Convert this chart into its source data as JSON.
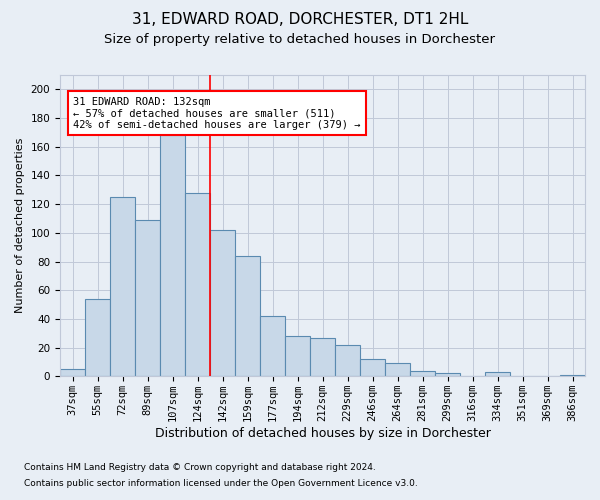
{
  "title1": "31, EDWARD ROAD, DORCHESTER, DT1 2HL",
  "title2": "Size of property relative to detached houses in Dorchester",
  "xlabel": "Distribution of detached houses by size in Dorchester",
  "ylabel": "Number of detached properties",
  "categories": [
    "37sqm",
    "55sqm",
    "72sqm",
    "89sqm",
    "107sqm",
    "124sqm",
    "142sqm",
    "159sqm",
    "177sqm",
    "194sqm",
    "212sqm",
    "229sqm",
    "246sqm",
    "264sqm",
    "281sqm",
    "299sqm",
    "316sqm",
    "334sqm",
    "351sqm",
    "369sqm",
    "386sqm"
  ],
  "values": [
    5,
    54,
    125,
    109,
    168,
    128,
    102,
    84,
    42,
    28,
    27,
    22,
    12,
    9,
    4,
    2,
    0,
    3,
    0,
    0,
    1
  ],
  "bar_color": "#c8d8e8",
  "bar_edge_color": "#5a8ab0",
  "bar_linewidth": 0.8,
  "vline_x_index": 5,
  "vline_color": "red",
  "annotation_text": "31 EDWARD ROAD: 132sqm\n← 57% of detached houses are smaller (511)\n42% of semi-detached houses are larger (379) →",
  "annotation_box_color": "white",
  "annotation_box_edge_color": "red",
  "annotation_fontsize": 7.5,
  "ylim": [
    0,
    210
  ],
  "yticks": [
    0,
    20,
    40,
    60,
    80,
    100,
    120,
    140,
    160,
    180,
    200
  ],
  "grid_color": "#c0c8d8",
  "bg_color": "#e8eef5",
  "footnote1": "Contains HM Land Registry data © Crown copyright and database right 2024.",
  "footnote2": "Contains public sector information licensed under the Open Government Licence v3.0.",
  "title1_fontsize": 11,
  "title2_fontsize": 9.5,
  "xlabel_fontsize": 9,
  "ylabel_fontsize": 8,
  "tick_fontsize": 7.5
}
